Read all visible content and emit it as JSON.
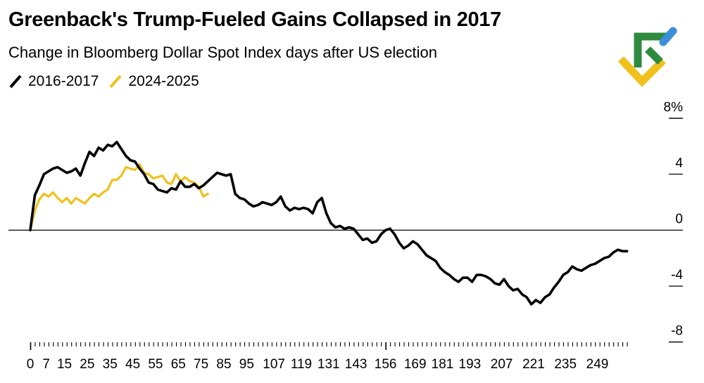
{
  "colors": {
    "series_2016": "#000000",
    "series_2024": "#f0c01c",
    "logo_green": "#2e8b3e",
    "logo_blue": "#3a8fdc",
    "logo_yellow": "#f0c01c"
  },
  "logo": {
    "icon": "brand-logo-icon"
  },
  "chart_data": {
    "type": "line",
    "title": "Greenback's Trump-Fueled Gains Collapsed in 2017",
    "subtitle": "Change in Bloomberg Dollar Spot Index days after US election",
    "xlabel": "",
    "ylabel": "",
    "xlim": [
      0,
      265
    ],
    "ylim": [
      -8,
      8
    ],
    "x_tick_labels": [
      "0",
      "7",
      "15",
      "25",
      "35",
      "45",
      "55",
      "65",
      "75",
      "85",
      "95",
      "107",
      "119",
      "131",
      "143",
      "156",
      "169",
      "181",
      "193",
      "207",
      "221",
      "235",
      "249"
    ],
    "x_tick_positions": [
      0,
      7,
      15,
      25,
      35,
      45,
      55,
      65,
      75,
      85,
      95,
      107,
      119,
      131,
      143,
      156,
      169,
      181,
      193,
      207,
      221,
      235,
      249
    ],
    "y_ticks": [
      {
        "value": 8,
        "label": "8%"
      },
      {
        "value": 4,
        "label": "4"
      },
      {
        "value": 0,
        "label": "0"
      },
      {
        "value": -4,
        "label": "-4"
      },
      {
        "value": -8,
        "label": "-8"
      }
    ],
    "legend": {
      "placement": "top-left"
    },
    "series": [
      {
        "name": "2016-2017",
        "x": [
          0,
          2,
          4,
          6,
          8,
          10,
          12,
          14,
          16,
          18,
          20,
          22,
          24,
          26,
          28,
          30,
          32,
          34,
          36,
          38,
          40,
          42,
          44,
          46,
          48,
          50,
          52,
          54,
          56,
          58,
          60,
          62,
          64,
          66,
          68,
          70,
          72,
          74,
          76,
          78,
          80,
          82,
          84,
          86,
          88,
          90,
          92,
          94,
          96,
          98,
          100,
          102,
          104,
          106,
          108,
          110,
          112,
          114,
          116,
          118,
          120,
          122,
          124,
          126,
          128,
          130,
          132,
          134,
          136,
          138,
          140,
          142,
          144,
          146,
          148,
          150,
          152,
          154,
          156,
          158,
          160,
          162,
          164,
          166,
          168,
          170,
          172,
          174,
          176,
          178,
          180,
          182,
          184,
          186,
          188,
          190,
          192,
          194,
          196,
          198,
          200,
          202,
          204,
          206,
          208,
          210,
          212,
          214,
          216,
          218,
          220,
          222,
          224,
          226,
          228,
          230,
          232,
          234,
          236,
          238,
          240,
          242,
          244,
          246,
          248,
          250,
          252,
          254,
          256,
          258,
          260,
          262
        ],
        "values": [
          0,
          2.5,
          3.2,
          4.0,
          4.2,
          4.4,
          4.5,
          4.3,
          4.1,
          4.2,
          4.4,
          3.9,
          4.8,
          5.6,
          5.3,
          5.9,
          5.7,
          6.1,
          6.0,
          6.3,
          5.8,
          5.3,
          5.0,
          4.9,
          4.4,
          4.0,
          3.4,
          3.3,
          2.9,
          2.8,
          2.7,
          3.0,
          2.9,
          3.5,
          3.1,
          3.1,
          3.3,
          3.0,
          3.2,
          3.5,
          3.8,
          4.1,
          4.0,
          3.9,
          4.0,
          2.6,
          2.3,
          2.2,
          1.9,
          1.7,
          1.8,
          2.0,
          1.9,
          1.8,
          2.0,
          2.4,
          1.7,
          1.4,
          1.6,
          1.5,
          1.6,
          1.5,
          1.2,
          2.0,
          2.3,
          1.2,
          0.5,
          0.2,
          0.3,
          0.1,
          0.2,
          0.1,
          -0.3,
          -0.7,
          -0.6,
          -0.9,
          -0.8,
          -0.3,
          0.0,
          0.1,
          -0.3,
          -0.9,
          -1.3,
          -1.1,
          -0.8,
          -1.0,
          -1.4,
          -1.8,
          -2.0,
          -2.2,
          -2.7,
          -3.0,
          -3.2,
          -3.5,
          -3.7,
          -3.4,
          -3.4,
          -3.7,
          -3.2,
          -3.2,
          -3.3,
          -3.5,
          -3.8,
          -3.9,
          -3.5,
          -4.0,
          -4.3,
          -4.2,
          -4.6,
          -4.8,
          -5.3,
          -5.0,
          -5.2,
          -4.8,
          -4.6,
          -4.1,
          -3.7,
          -3.2,
          -3.0,
          -2.6,
          -2.8,
          -2.9,
          -2.7,
          -2.5,
          -2.4,
          -2.2,
          -2.0,
          -1.9,
          -1.6,
          -1.4,
          -1.5,
          -1.5
        ]
      },
      {
        "name": "2024-2025",
        "x": [
          0,
          2,
          4,
          6,
          8,
          10,
          12,
          14,
          16,
          18,
          20,
          22,
          24,
          26,
          28,
          30,
          32,
          34,
          36,
          38,
          40,
          42,
          44,
          46,
          48,
          50,
          52,
          54,
          56,
          58,
          60,
          62,
          64,
          66,
          68,
          70,
          72,
          74,
          76,
          78
        ],
        "values": [
          0,
          1.4,
          2.2,
          2.6,
          2.4,
          2.7,
          2.3,
          2.0,
          2.3,
          1.9,
          2.3,
          2.1,
          1.9,
          2.3,
          2.6,
          2.4,
          2.7,
          2.9,
          3.6,
          3.6,
          3.9,
          4.5,
          4.4,
          4.3,
          4.7,
          4.1,
          4.0,
          3.7,
          3.8,
          3.9,
          3.4,
          3.3,
          4.0,
          3.5,
          3.8,
          3.5,
          3.4,
          3.1,
          2.4,
          2.6
        ]
      }
    ]
  }
}
